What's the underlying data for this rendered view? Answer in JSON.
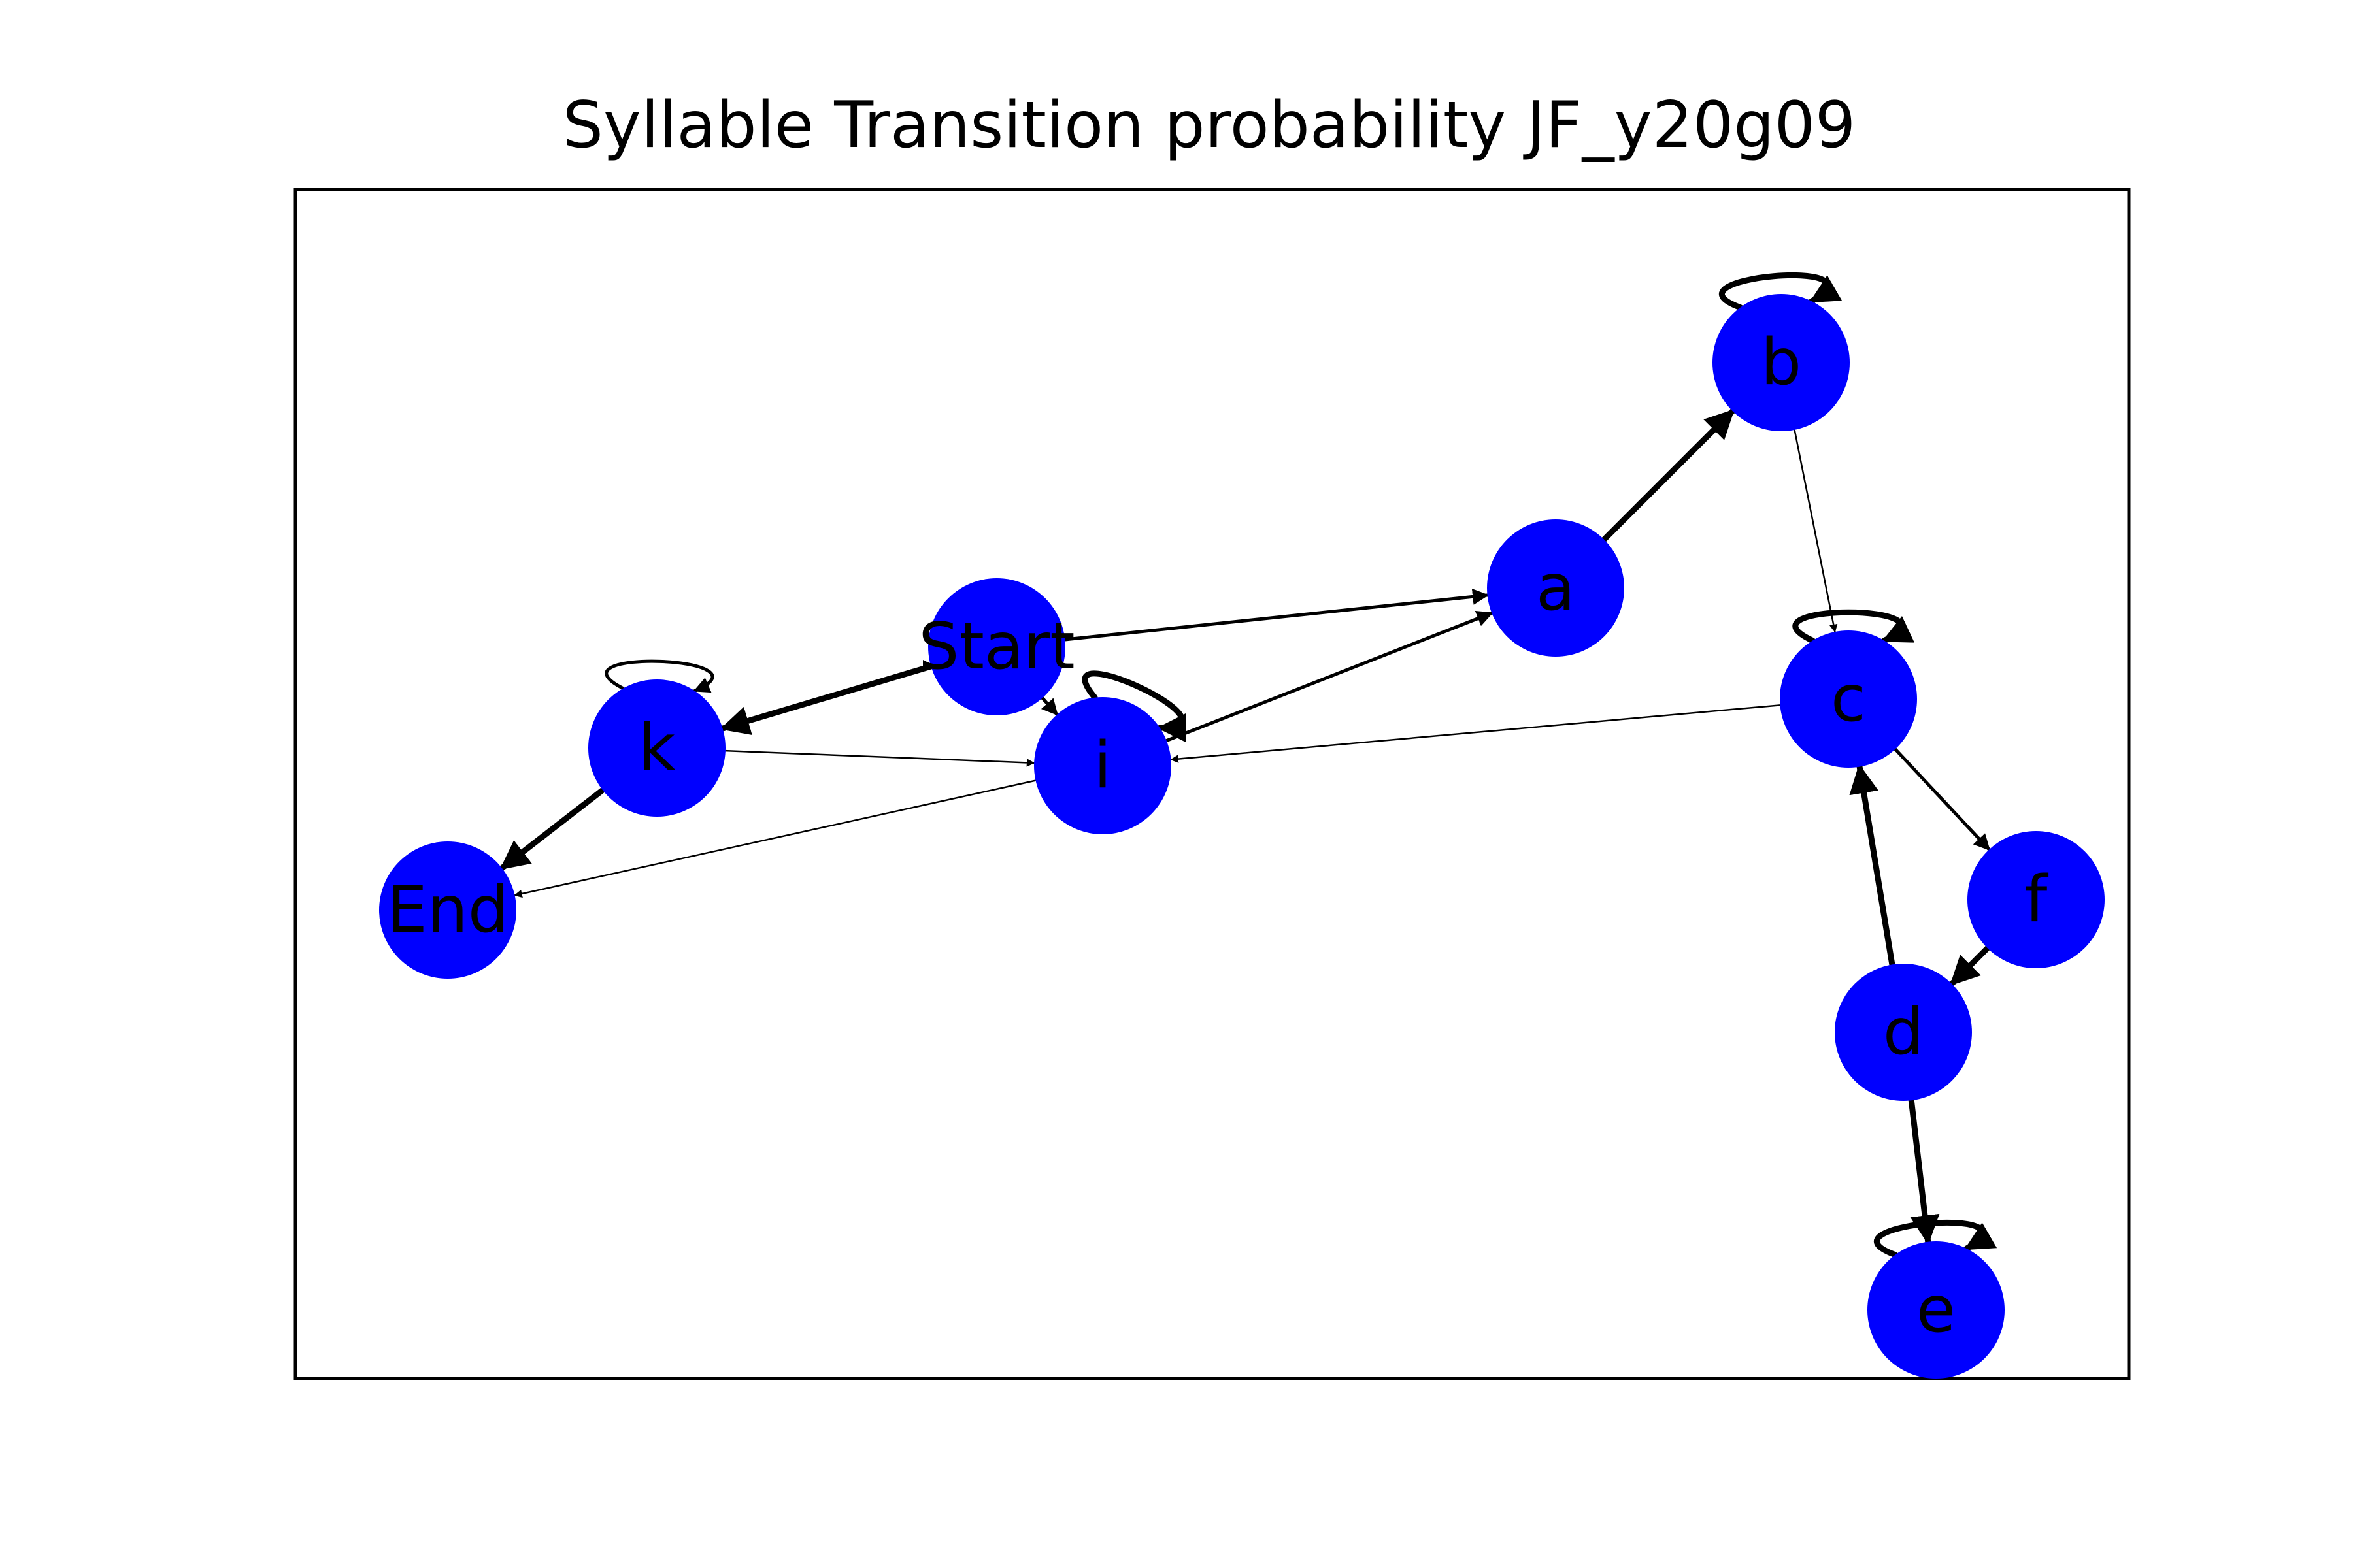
{
  "title": "Syllable Transition probability JF_y20g09",
  "colors": {
    "node_fill": "#0000ff",
    "edge": "#000000",
    "frame": "#000000",
    "background": "#ffffff"
  },
  "nodes": [
    {
      "id": "Start",
      "label": "Start"
    },
    {
      "id": "End",
      "label": "End"
    },
    {
      "id": "a",
      "label": "a"
    },
    {
      "id": "b",
      "label": "b"
    },
    {
      "id": "c",
      "label": "c"
    },
    {
      "id": "d",
      "label": "d"
    },
    {
      "id": "e",
      "label": "e"
    },
    {
      "id": "f",
      "label": "f"
    },
    {
      "id": "i",
      "label": "i"
    },
    {
      "id": "k",
      "label": "k"
    }
  ],
  "edges": [
    {
      "from": "Start",
      "to": "k",
      "weight": "heavy"
    },
    {
      "from": "Start",
      "to": "a",
      "weight": "medium"
    },
    {
      "from": "Start",
      "to": "i",
      "weight": "medium"
    },
    {
      "from": "a",
      "to": "b",
      "weight": "heavy"
    },
    {
      "from": "b",
      "to": "b",
      "weight": "heavy"
    },
    {
      "from": "b",
      "to": "c",
      "weight": "thin"
    },
    {
      "from": "c",
      "to": "c",
      "weight": "heavy"
    },
    {
      "from": "c",
      "to": "f",
      "weight": "medium"
    },
    {
      "from": "c",
      "to": "i",
      "weight": "thin"
    },
    {
      "from": "f",
      "to": "d",
      "weight": "heavy"
    },
    {
      "from": "d",
      "to": "c",
      "weight": "heavy"
    },
    {
      "from": "d",
      "to": "e",
      "weight": "heavy"
    },
    {
      "from": "e",
      "to": "e",
      "weight": "heavy"
    },
    {
      "from": "i",
      "to": "i",
      "weight": "heavy"
    },
    {
      "from": "i",
      "to": "a",
      "weight": "medium"
    },
    {
      "from": "i",
      "to": "End",
      "weight": "thin"
    },
    {
      "from": "k",
      "to": "k",
      "weight": "medium"
    },
    {
      "from": "k",
      "to": "i",
      "weight": "thin"
    },
    {
      "from": "k",
      "to": "End",
      "weight": "heavy"
    }
  ]
}
